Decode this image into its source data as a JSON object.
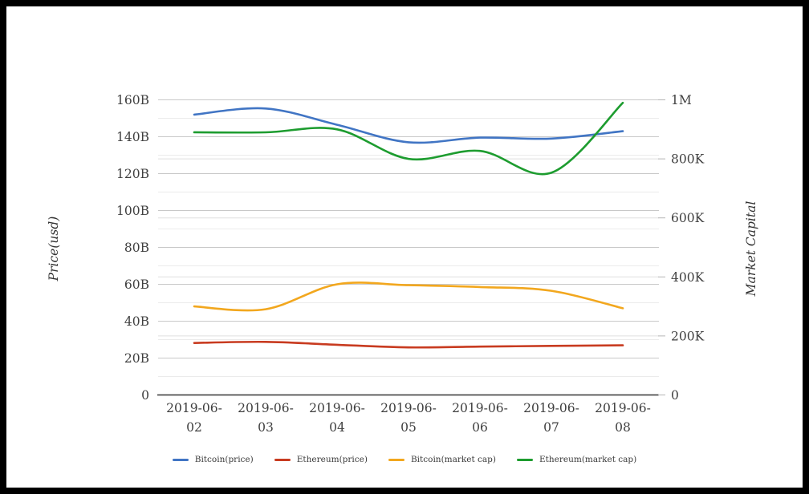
{
  "window": {
    "background": "#ffffff",
    "frame_color": "#000000"
  },
  "chart_data": {
    "type": "line",
    "title": "",
    "x_categories": [
      "2019-06-02",
      "2019-06-03",
      "2019-06-04",
      "2019-06-05",
      "2019-06-06",
      "2019-06-07",
      "2019-06-08"
    ],
    "left_axis": {
      "label": "Price(usd)",
      "unit": "B",
      "min": 0,
      "max": 160,
      "tick_step": 20,
      "ticks": [
        "0",
        "20B",
        "40B",
        "60B",
        "80B",
        "100B",
        "120B",
        "140B",
        "160B"
      ]
    },
    "right_axis": {
      "label": "Market Capital",
      "unit": "K",
      "min": 0,
      "max": 1000,
      "tick_step": 200,
      "ticks": [
        "0",
        "200K",
        "400K",
        "600K",
        "800K",
        "1M"
      ]
    },
    "grid": true,
    "legend_position": "bottom",
    "series": [
      {
        "name": "Bitcoin(price)",
        "color": "#4175c4",
        "axis": "left",
        "values": [
          152,
          155.3,
          146.5,
          137,
          139.5,
          139,
          143
        ]
      },
      {
        "name": "Ethereum(price)",
        "color": "#c83b20",
        "axis": "left",
        "values": [
          28.2,
          28.8,
          27.2,
          25.8,
          26.2,
          26.6,
          26.9
        ]
      },
      {
        "name": "Bitcoin(market cap)",
        "color": "#f2a71e",
        "axis": "left",
        "values": [
          48,
          46.5,
          60,
          59.5,
          58.5,
          56.5,
          47
        ]
      },
      {
        "name": "Ethereum(market cap)",
        "color": "#1d9c2f",
        "axis": "right",
        "values": [
          890,
          890,
          900,
          800,
          827,
          753,
          990
        ]
      }
    ]
  }
}
